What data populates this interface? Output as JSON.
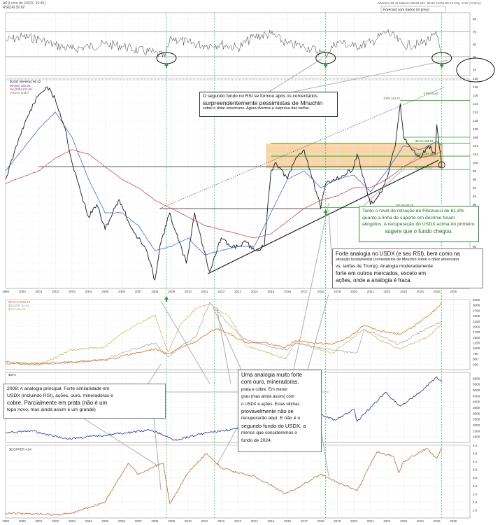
{
  "header": {
    "left_caption": "A$ (Lucro do USDX, 16:45)",
    "rsi_label": "RSI(14) 32.92",
    "right_caption": "Abertura 99.41 Máximo 99.69 Mín. 98.82 Fecha 99.42 Chg -0.31 (-0.31%)",
    "legend_box": "Forecast com dados do preço"
  },
  "colors": {
    "price": "#1a1a1a",
    "ma50": "#3355cc",
    "ma200": "#cc3344",
    "fib_green": "#2e9e2e",
    "support_band": "#f2b35e",
    "gold": "#d9772a",
    "silver": "#8899aa",
    "spx": "#1f2d99",
    "copper": "#b06a3a",
    "vline": "#33aa55"
  },
  "chart_data": [
    {
      "type": "line",
      "title": "RSI(14) 32.92",
      "ylim": [
        0,
        100
      ],
      "yticks": [
        10,
        30,
        50,
        70,
        90
      ],
      "x_years": [
        1999,
        2000,
        2001,
        2002,
        2003,
        2004,
        2005,
        2006,
        2007,
        2008,
        2009,
        2010,
        2011,
        2012,
        2013,
        2014,
        2015,
        2016,
        2017,
        2018,
        2019,
        2020,
        2021,
        2022,
        2023,
        2024,
        2025,
        2026
      ],
      "series": [
        {
          "name": "RSI(14)",
          "x": [
            1999,
            2000,
            2001,
            2002,
            2003,
            2004,
            2005,
            2006,
            2007,
            2008,
            2008.6,
            2009,
            2010,
            2011,
            2012,
            2013,
            2014,
            2015,
            2016,
            2017,
            2018,
            2018.3,
            2019,
            2020,
            2021,
            2022,
            2023,
            2024,
            2025,
            2025.3
          ],
          "y": [
            55,
            62,
            58,
            48,
            42,
            46,
            50,
            47,
            40,
            36,
            30,
            60,
            52,
            48,
            50,
            44,
            62,
            66,
            50,
            46,
            38,
            33,
            54,
            46,
            52,
            70,
            48,
            50,
            64,
            33
          ]
        }
      ]
    },
    {
      "type": "line",
      "title": "$USD (Weekly) 99.42",
      "legend": [
        "MA(50) 103.96",
        "MA(200) 102.66",
        "Volume undef"
      ],
      "ylim": [
        70,
        120
      ],
      "yticks": [
        72,
        74,
        76,
        78,
        80,
        82,
        84,
        86,
        88,
        90,
        92,
        94,
        96,
        98,
        100,
        102,
        104,
        106,
        108,
        110,
        112,
        114,
        116,
        118,
        120
      ],
      "fib_labels": [
        "0.0% 114.72",
        "38.2% 104.57",
        "50.0% 101.49",
        "61.8% 98.31",
        "100.0% 89.25",
        "0.0% 94.62"
      ],
      "series": [
        {
          "name": "$USD",
          "x": [
            1999,
            1999.5,
            2000,
            2000.7,
            2001,
            2001.5,
            2002,
            2002.6,
            2003,
            2003.6,
            2004,
            2004.5,
            2005,
            2005.8,
            2006,
            2006.5,
            2007,
            2007.5,
            2008,
            2008.3,
            2008.9,
            2009.2,
            2009.9,
            2010.4,
            2010.9,
            2011.3,
            2012,
            2012.5,
            2013,
            2013.5,
            2014,
            2014.6,
            2015,
            2015.3,
            2016,
            2016.5,
            2017,
            2017.8,
            2018,
            2018.3,
            2018.8,
            2019.5,
            2020,
            2020.2,
            2020.8,
            2021,
            2021.5,
            2022,
            2022.5,
            2022.8,
            2023,
            2023.5,
            2024,
            2024.5,
            2024.9,
            2025,
            2025.3
          ],
          "y": [
            96,
            102,
            108,
            114,
            116,
            118,
            115,
            108,
            100,
            92,
            87,
            90,
            84,
            91,
            90,
            85,
            82,
            79,
            72,
            80,
            88,
            84,
            76,
            88,
            80,
            74,
            82,
            80,
            80,
            81,
            79,
            80,
            98,
            100,
            96,
            101,
            103,
            92,
            89,
            95,
            96,
            97,
            99,
            102,
            93,
            90,
            92,
            96,
            104,
            114,
            106,
            103,
            101,
            104,
            102,
            109,
            99
          ]
        },
        {
          "name": "MA(50)",
          "x": [
            1999,
            2001,
            2002,
            2003,
            2004,
            2005,
            2006,
            2007,
            2008,
            2009,
            2010,
            2011,
            2012,
            2013,
            2014,
            2015,
            2016,
            2017,
            2018,
            2019,
            2020,
            2021,
            2022,
            2023,
            2024,
            2025,
            2025.3
          ],
          "y": [
            98,
            108,
            112,
            106,
            96,
            88,
            88,
            85,
            79,
            80,
            82,
            78,
            79,
            80,
            80,
            88,
            96,
            98,
            94,
            96,
            97,
            93,
            98,
            104,
            103,
            105,
            104
          ]
        },
        {
          "name": "MA(200)",
          "x": [
            1999,
            2001,
            2002,
            2003,
            2004,
            2005,
            2006,
            2007,
            2008,
            2009,
            2010,
            2011,
            2012,
            2013,
            2014,
            2015,
            2016,
            2017,
            2018,
            2019,
            2020,
            2021,
            2022,
            2023,
            2024,
            2025,
            2025.3
          ],
          "y": [
            95,
            98,
            101,
            103,
            102,
            99,
            96,
            94,
            91,
            89,
            87,
            85,
            84,
            83,
            82,
            83,
            86,
            89,
            91,
            92,
            94,
            94,
            96,
            99,
            101,
            102,
            102.7
          ]
        }
      ]
    },
    {
      "type": "line",
      "title": "$GOLD",
      "legend": [
        "$GOLD 3090.10",
        "$SILVER 34.14",
        "$HUI 421.06"
      ],
      "ylim": [
        0,
        3250
      ],
      "series": [
        {
          "name": "$GOLD",
          "x": [
            1999,
            2001,
            2003,
            2005,
            2006,
            2008,
            2008.8,
            2009.5,
            2010.5,
            2011.7,
            2012.5,
            2013.5,
            2014.5,
            2015.9,
            2016.5,
            2017.5,
            2018.7,
            2019.7,
            2020.6,
            2021.5,
            2022.8,
            2023.5,
            2024.5,
            2025.3
          ],
          "y": [
            290,
            270,
            360,
            440,
            620,
            960,
            720,
            1000,
            1300,
            1900,
            1650,
            1250,
            1250,
            1050,
            1350,
            1250,
            1180,
            1500,
            2050,
            1800,
            1650,
            1950,
            2500,
            3090
          ]
        },
        {
          "name": "$SILVER",
          "x": [
            1999,
            2001,
            2003,
            2005,
            2006,
            2008,
            2008.8,
            2009.5,
            2010.5,
            2011.3,
            2012.5,
            2013.5,
            2015.9,
            2016.5,
            2018.7,
            2020.2,
            2020.6,
            2021.5,
            2022.7,
            2024.5,
            2025.3
          ],
          "y": [
            5.2,
            4.4,
            4.8,
            7.2,
            12,
            19,
            9,
            16,
            24,
            48,
            32,
            21,
            14,
            19,
            14,
            12,
            28,
            25,
            18,
            30,
            34
          ]
        },
        {
          "name": "$HUI",
          "x": [
            1999,
            2001,
            2003,
            2005,
            2006,
            2008,
            2008.8,
            2009.5,
            2010.5,
            2011.3,
            2012.5,
            2013.5,
            2015.9,
            2016.5,
            2018.7,
            2020.6,
            2021.5,
            2022.7,
            2024.5,
            2025.3
          ],
          "y": [
            70,
            40,
            180,
            210,
            330,
            500,
            160,
            400,
            560,
            600,
            480,
            220,
            100,
            250,
            150,
            370,
            280,
            190,
            300,
            421
          ]
        }
      ]
    },
    {
      "type": "line",
      "title": "$SPX",
      "ylim": [
        500,
        6500
      ],
      "series": [
        {
          "name": "$SPX",
          "x": [
            1999,
            2000.5,
            2002.8,
            2007.8,
            2009.2,
            2011,
            2013,
            2015,
            2016,
            2018,
            2018.9,
            2020,
            2020.2,
            2021.9,
            2022.8,
            2024,
            2025,
            2025.3
          ],
          "y": [
            1300,
            1500,
            800,
            1550,
            700,
            1300,
            1650,
            2100,
            1900,
            2900,
            2400,
            3350,
            2300,
            4800,
            3600,
            4800,
            6100,
            5700
          ]
        }
      ]
    },
    {
      "type": "line",
      "title": "$COPPER 4.84",
      "ylim": [
        0.5,
        5.0
      ],
      "series": [
        {
          "name": "$COPPER",
          "x": [
            1999,
            2001,
            2002,
            2003,
            2005,
            2006.4,
            2007,
            2008.5,
            2008.9,
            2010,
            2011.1,
            2012,
            2013,
            2014,
            2015.9,
            2016.5,
            2018,
            2019,
            2020.2,
            2021.4,
            2022.4,
            2022.7,
            2023,
            2024.4,
            2025,
            2025.3
          ],
          "y": [
            0.8,
            0.75,
            0.7,
            0.8,
            1.5,
            3.9,
            3.2,
            3.9,
            1.4,
            3.3,
            4.5,
            3.6,
            3.3,
            3.1,
            2.0,
            2.3,
            3.2,
            2.7,
            2.2,
            4.6,
            4.3,
            3.3,
            4.0,
            4.8,
            4.2,
            4.84
          ]
        }
      ]
    }
  ],
  "annotations": {
    "note_top": {
      "l1": "O segundo fundo no RSI se formou após os comentários",
      "l2": "surpreendentemente pessimistas de Mnuchin",
      "l3": "sobre o dólar americano. Agora tivemos a surpresa das tarifas."
    },
    "note_fib": {
      "l1": "Tanto o nível de retração de Fibonacci de 61,8%",
      "l2": "quanto a linha de suporte em declínio foram",
      "l3": "atingidos. A recuperação do USDX acima do primeiro",
      "l4": "sugere que o fundo chegou."
    },
    "note_analogy": {
      "l1": "Forte analogia no USDX (e seu RSI), bem como na",
      "l2": "situação fundamental (comentários de Mnuchin sobre o dólar americano",
      "l3": "vs. tarifas de Trump). Analogia moderadamente",
      "l4": "forte em outros mercados, exceto em",
      "l5": "ações, onde a analogia é fraca."
    },
    "note_2008": {
      "l1": "2008: A analogia principal. Forte similaridade em",
      "l2": "USDX (incluindo RSI), ações, ouro, mineradoras e",
      "l3": "cobre. Parcialmente em prata (não é um",
      "l4": "topo novo, mas ainda assim é um grande)"
    },
    "note_metals": {
      "l1": "Uma analogia muito forte",
      "l2": "com ouro, mineradoras,",
      "l3": "prata e cobre. Em menor",
      "l4": "grau (mas ainda assim) com",
      "l5": "o USDX e ações. Estas últimas",
      "l6": "provavelmente não se",
      "l7": "recuperarão aqui. E não é o",
      "l8": "segundo fundo do USDX, a",
      "l9": "menos que consideremos o",
      "l10": "fundo de 2024."
    }
  }
}
